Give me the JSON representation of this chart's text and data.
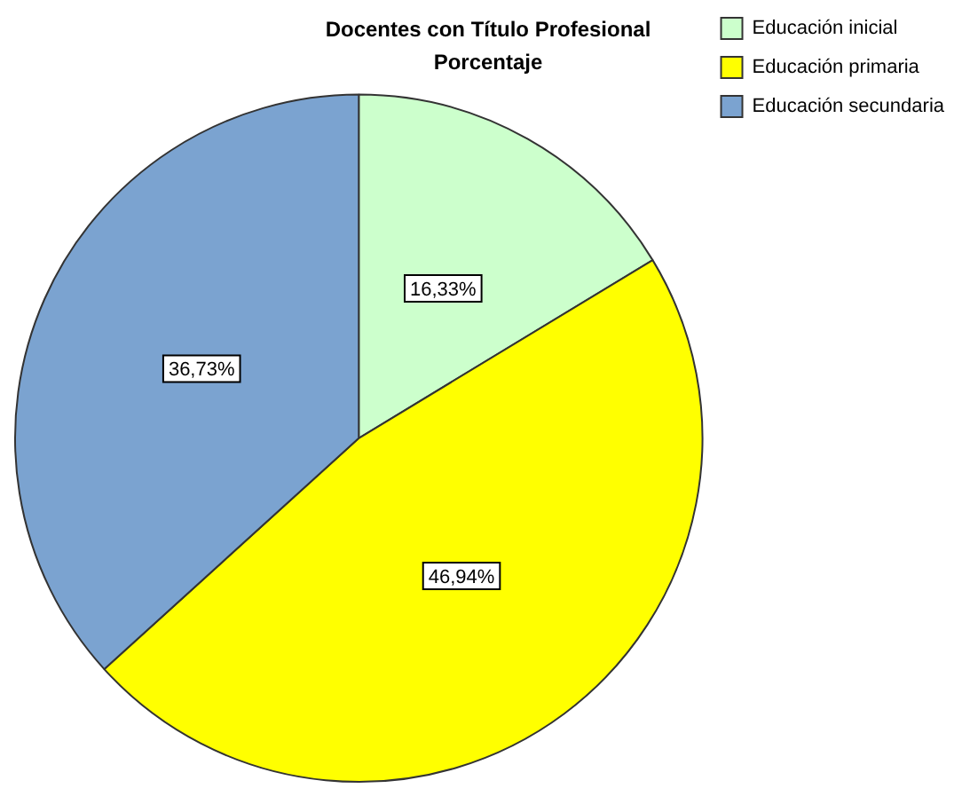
{
  "chart_data": {
    "type": "pie",
    "title": "Docentes con Título Profesional",
    "subtitle": "Porcentaje",
    "categories": [
      "Educación inicial",
      "Educación primaria",
      "Educación secundaria"
    ],
    "values": [
      16.33,
      46.94,
      36.73
    ],
    "colors": [
      "#ccffcc",
      "#ffff00",
      "#7ba3d0"
    ],
    "value_labels": [
      "16,33%",
      "46,94%",
      "36,73%"
    ],
    "legend": "top right"
  }
}
